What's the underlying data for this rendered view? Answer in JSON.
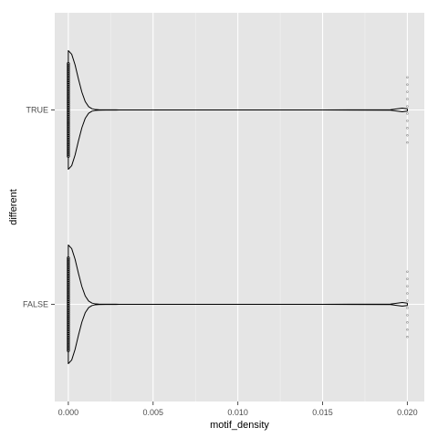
{
  "chart_data": {
    "type": "violin",
    "orientation": "horizontal",
    "xlabel": "motif_density",
    "ylabel": "different",
    "xlim": [
      -0.0008,
      0.021
    ],
    "x_ticks": [
      0.0,
      0.005,
      0.01,
      0.015,
      0.02
    ],
    "x_tick_labels": [
      "0.000",
      "0.005",
      "0.010",
      "0.015",
      "0.020"
    ],
    "categories": [
      "FALSE",
      "TRUE"
    ],
    "grid": true,
    "background": "#e5e5e5",
    "gridline_color": "#ffffff",
    "line_color": "#000000",
    "groups": [
      {
        "category": "FALSE",
        "min": 0.0,
        "max": 0.02,
        "mode": 0.0,
        "density_profile": [
          [
            0.0,
            1.0
          ],
          [
            0.0002,
            0.94
          ],
          [
            0.0004,
            0.76
          ],
          [
            0.0006,
            0.52
          ],
          [
            0.0008,
            0.3
          ],
          [
            0.001,
            0.14
          ],
          [
            0.0012,
            0.055
          ],
          [
            0.0014,
            0.02
          ],
          [
            0.0016,
            0.007
          ],
          [
            0.0018,
            0.003
          ],
          [
            0.0022,
            0.0015
          ],
          [
            0.003,
            0.001
          ],
          [
            0.006,
            0.001
          ],
          [
            0.01,
            0.001
          ],
          [
            0.015,
            0.001
          ],
          [
            0.019,
            0.004
          ],
          [
            0.0197,
            0.03
          ],
          [
            0.02,
            0.02
          ]
        ],
        "points_x": [
          0.0,
          0.0,
          0.0,
          0.0,
          0.0,
          0.0,
          0.0,
          0.0,
          0.0,
          0.0,
          0.0,
          0.0,
          0.0,
          0.0,
          0.0,
          0.0,
          0.0,
          0.0,
          0.0,
          0.0,
          0.0,
          0.0,
          0.0,
          0.0,
          0.0,
          0.0,
          0.0,
          0.0,
          0.0,
          0.0,
          0.0,
          0.0,
          0.0,
          0.0,
          0.0,
          0.0,
          0.0,
          0.0,
          0.0,
          0.0,
          0.0,
          0.0,
          0.0,
          0.0,
          0.0,
          0.0,
          0.0,
          0.0,
          0.0,
          0.0,
          0.02,
          0.02,
          0.02,
          0.02,
          0.02,
          0.02,
          0.02,
          0.02,
          0.02,
          0.02
        ]
      },
      {
        "category": "TRUE",
        "min": 0.0,
        "max": 0.02,
        "mode": 0.0,
        "density_profile": [
          [
            0.0,
            1.0
          ],
          [
            0.0002,
            0.94
          ],
          [
            0.0004,
            0.76
          ],
          [
            0.0006,
            0.52
          ],
          [
            0.0008,
            0.3
          ],
          [
            0.001,
            0.14
          ],
          [
            0.0012,
            0.055
          ],
          [
            0.0014,
            0.02
          ],
          [
            0.0016,
            0.007
          ],
          [
            0.0018,
            0.003
          ],
          [
            0.0022,
            0.0015
          ],
          [
            0.003,
            0.001
          ],
          [
            0.006,
            0.001
          ],
          [
            0.01,
            0.001
          ],
          [
            0.015,
            0.001
          ],
          [
            0.019,
            0.004
          ],
          [
            0.0197,
            0.03
          ],
          [
            0.02,
            0.02
          ]
        ],
        "points_x": [
          0.0,
          0.0,
          0.0,
          0.0,
          0.0,
          0.0,
          0.0,
          0.0,
          0.0,
          0.0,
          0.0,
          0.0,
          0.0,
          0.0,
          0.0,
          0.0,
          0.0,
          0.0,
          0.0,
          0.0,
          0.0,
          0.0,
          0.0,
          0.0,
          0.0,
          0.0,
          0.0,
          0.0,
          0.0,
          0.0,
          0.0,
          0.0,
          0.0,
          0.0,
          0.0,
          0.0,
          0.0,
          0.0,
          0.0,
          0.0,
          0.0,
          0.0,
          0.0,
          0.0,
          0.0,
          0.0,
          0.0,
          0.0,
          0.0,
          0.0,
          0.02,
          0.02,
          0.02,
          0.02,
          0.02,
          0.02,
          0.02,
          0.02,
          0.02,
          0.02
        ]
      }
    ]
  }
}
